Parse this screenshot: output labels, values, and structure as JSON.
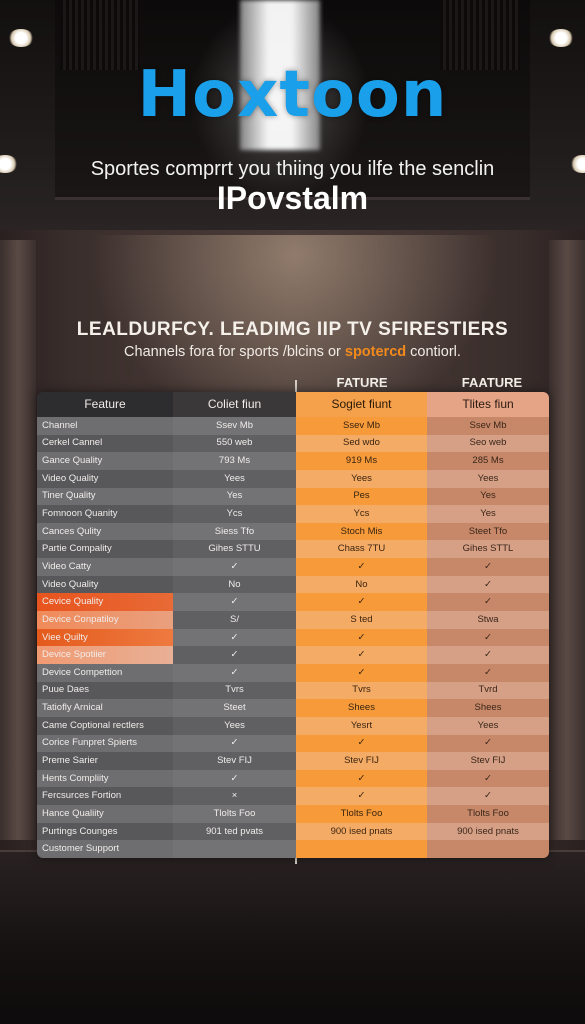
{
  "header": {
    "brand": "Hoxtoon",
    "tagline": "Sportes comprrt you thiing you ilfe the senclin",
    "subbrand": "IPovstalm"
  },
  "section": {
    "headline": "LEALDURFCY. LEADIMG IIP TV SFIRESTIERS",
    "subhead_prefix": "Channels fora for sports /blcins or ",
    "subhead_highlight": "spotercd",
    "subhead_suffix": " contiorl."
  },
  "table": {
    "top_labels": [
      "FATURE",
      "FAATURE"
    ],
    "columns": [
      "Feature",
      "Coliet fiun",
      "Sogiet fiunt",
      "Tlites fiun"
    ],
    "rows": [
      [
        "Channel",
        "Ssev Mb",
        "Ssev Mb",
        "Ssev Mb"
      ],
      [
        "Cerkel Cannel",
        "550 web",
        "Sed wdo",
        "Seo web"
      ],
      [
        "Gance Quality",
        "793 Ms",
        "919 Ms",
        "285 Ms"
      ],
      [
        "Video Quality",
        "Yees",
        "Yees",
        "Yees"
      ],
      [
        "Tiner Quality",
        "Yes",
        "Pes",
        "Yes"
      ],
      [
        "Fomnoon Quanity",
        "Ycs",
        "Ycs",
        "Yes"
      ],
      [
        "Cances Qulity",
        "Siess Tfo",
        "Stoch Mis",
        "Steet Tfo"
      ],
      [
        "Partie Compality",
        "Gihes STTU",
        "Chass 7TU",
        "Gihes STTL"
      ],
      [
        "Video Catty",
        "✓",
        "✓",
        "✓"
      ],
      [
        "Video Quality",
        "No",
        "No",
        "✓"
      ],
      [
        "Cevice Quality",
        "✓",
        "✓",
        "✓"
      ],
      [
        "Device Conpatiloy",
        "S/",
        "S ted",
        "Stwa"
      ],
      [
        "Viee Quilty",
        "✓",
        "✓",
        "✓"
      ],
      [
        "Device Spotiier",
        "✓",
        "✓",
        "✓"
      ],
      [
        "Device Compettion",
        "✓",
        "✓",
        "✓"
      ],
      [
        "Puue Daes",
        "Tvrs",
        "Tvrs",
        "Tvrd"
      ],
      [
        "Tatiofly Arnical",
        "Steet",
        "Shees",
        "Shees"
      ],
      [
        "Came Coptional rectlers",
        "Yees",
        "Yesrt",
        "Yees"
      ],
      [
        "Corice Funpret Spierts",
        "✓",
        "✓",
        "✓"
      ],
      [
        "Preme Sarier",
        "Stev FIJ",
        "Stev FIJ",
        "Stev FIJ"
      ],
      [
        "Hents Compliity",
        "✓",
        "✓",
        "✓"
      ],
      [
        "Fercsurces Fortion",
        "×",
        "✓",
        "✓"
      ],
      [
        "Hance Qualiity",
        "Tlolts Foo",
        "Tlolts Foo",
        "Tlolts Foo"
      ],
      [
        "Purtings Counges",
        "901 ted pvats",
        "900 ised pnats",
        "900 ised pnats"
      ],
      [
        "Customer Support",
        "",
        "",
        ""
      ]
    ]
  },
  "colors": {
    "brand": "#1a9fea",
    "accent": "#f28a1c"
  }
}
